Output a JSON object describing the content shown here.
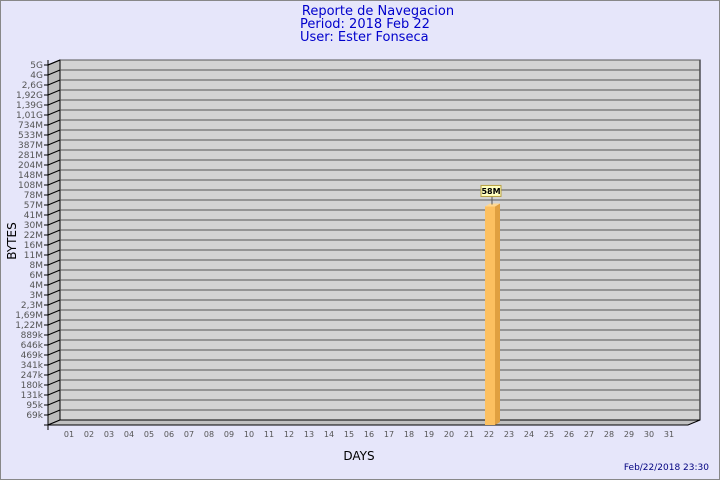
{
  "chart_data": {
    "type": "bar",
    "title": "Reporte de Navegacion",
    "subtitle_period": "Period: 2018 Feb 22",
    "subtitle_user": "User: Ester Fonseca",
    "xlabel": "DAYS",
    "ylabel": "BYTES",
    "timestamp": "Feb/22/2018 23:30",
    "y_scale": "log",
    "grid": true,
    "y_ticks": [
      "5G",
      "4G",
      "2,6G",
      "1,92G",
      "1,39G",
      "1,01G",
      "734M",
      "533M",
      "387M",
      "281M",
      "204M",
      "148M",
      "108M",
      "78M",
      "57M",
      "41M",
      "30M",
      "22M",
      "16M",
      "11M",
      "8M",
      "6M",
      "4M",
      "3M",
      "2,3M",
      "1,69M",
      "1,22M",
      "889k",
      "646k",
      "469k",
      "341k",
      "247k",
      "180k",
      "131k",
      "95k",
      "69k"
    ],
    "categories": [
      "01",
      "02",
      "03",
      "04",
      "05",
      "06",
      "07",
      "08",
      "09",
      "10",
      "11",
      "12",
      "13",
      "14",
      "15",
      "16",
      "17",
      "18",
      "19",
      "20",
      "21",
      "22",
      "23",
      "24",
      "25",
      "26",
      "27",
      "28",
      "29",
      "30",
      "31"
    ],
    "values": [
      0,
      0,
      0,
      0,
      0,
      0,
      0,
      0,
      0,
      0,
      0,
      0,
      0,
      0,
      0,
      0,
      0,
      0,
      0,
      0,
      0,
      58000000,
      0,
      0,
      0,
      0,
      0,
      0,
      0,
      0,
      0
    ],
    "data_labels": {
      "22": "58M"
    },
    "colors": {
      "bar": "#fcc060",
      "bar_side": "#e0a040",
      "bar_top": "#ffd890",
      "wall": "#d3d3d3",
      "title": "#0000cc",
      "background": "#e6e6fa"
    }
  }
}
